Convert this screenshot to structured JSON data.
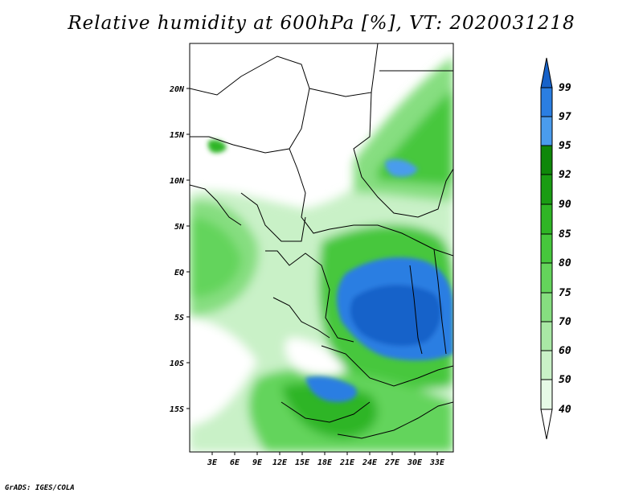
{
  "title": "Relative humidity at 600hPa [%], VT: 2020031218",
  "credit": "GrADS: IGES/COLA",
  "map": {
    "lon_labels": [
      "3E",
      "6E",
      "9E",
      "12E",
      "15E",
      "18E",
      "21E",
      "24E",
      "27E",
      "30E",
      "33E"
    ],
    "lat_labels": [
      "20N",
      "15N",
      "10N",
      "5N",
      "EQ",
      "5S",
      "10S",
      "15S"
    ],
    "lon_range": [
      0,
      35
    ],
    "lat_range": [
      -20,
      24
    ]
  },
  "colorbar": {
    "levels": [
      "40",
      "50",
      "60",
      "70",
      "75",
      "80",
      "85",
      "90",
      "92",
      "95",
      "97",
      "99"
    ],
    "colors": [
      "#ffffff",
      "#e6f9e6",
      "#c9f1c7",
      "#a9e8a5",
      "#86de80",
      "#64d45b",
      "#46c73c",
      "#2fb525",
      "#1a9c13",
      "#0f870a",
      "#4a9ced",
      "#2a7ee2",
      "#1762c9"
    ]
  },
  "chart_data": {
    "type": "heatmap",
    "title": "Relative humidity at 600hPa [%], VT: 2020031218",
    "xlabel": "",
    "ylabel": "",
    "x_ticks": [
      "3E",
      "6E",
      "9E",
      "12E",
      "15E",
      "18E",
      "21E",
      "24E",
      "27E",
      "30E",
      "33E"
    ],
    "y_ticks": [
      "20N",
      "15N",
      "10N",
      "5N",
      "EQ",
      "5S",
      "10S",
      "15S"
    ],
    "legend_levels": [
      40,
      50,
      60,
      70,
      75,
      80,
      85,
      90,
      92,
      95,
      97,
      99
    ]
  }
}
